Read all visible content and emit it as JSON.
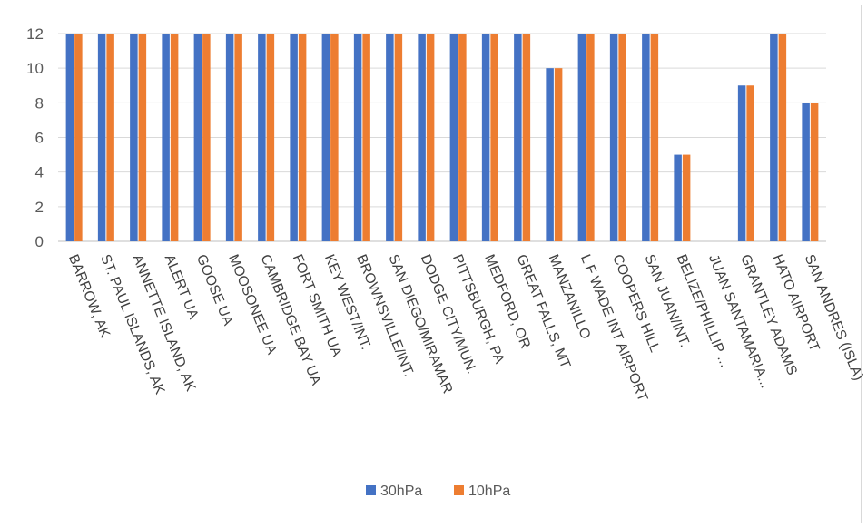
{
  "chart_data": {
    "type": "bar",
    "categories": [
      "BARROW, AK",
      "ST. PAUL ISLANDS, AK",
      "ANNETTE ISLAND, AK",
      "ALERT UA",
      "GOOSE UA",
      "MOOSONEE UA",
      "CAMBRIDGE BAY UA",
      "FORT SMITH UA",
      "KEY WEST/INT.",
      "BROWNSVILLE/INT.",
      "SAN DIEGO/MIRAMAR",
      "DODGE CITY/MUN.",
      "PITTSBURGH, PA",
      "MEDFORD, OR",
      "GREAT FALLS, MT",
      "MANZANILLO",
      "L F WADE INT AIRPORT",
      "COOPERS HILL",
      "SAN JUAN/INT.",
      "BELIZE/PHILLIP ...",
      "JUAN SANTAMARIA...",
      "GRANTLEY ADAMS",
      "HATO AIRPORT",
      "SAN ANDRES (ISLA)"
    ],
    "series": [
      {
        "name": "30hPa",
        "color": "#4472c4",
        "values": [
          12,
          12,
          12,
          12,
          12,
          12,
          12,
          12,
          12,
          12,
          12,
          12,
          12,
          12,
          12,
          10,
          12,
          12,
          12,
          5,
          0,
          9,
          12,
          8
        ]
      },
      {
        "name": "10hPa",
        "color": "#ed7d31",
        "values": [
          12,
          12,
          12,
          12,
          12,
          12,
          12,
          12,
          12,
          12,
          12,
          12,
          12,
          12,
          12,
          10,
          12,
          12,
          12,
          5,
          0,
          9,
          12,
          8
        ]
      }
    ],
    "ylim": [
      0,
      12
    ],
    "yticks": [
      0,
      2,
      4,
      6,
      8,
      10,
      12
    ],
    "grid": true,
    "legend_position": "bottom"
  }
}
